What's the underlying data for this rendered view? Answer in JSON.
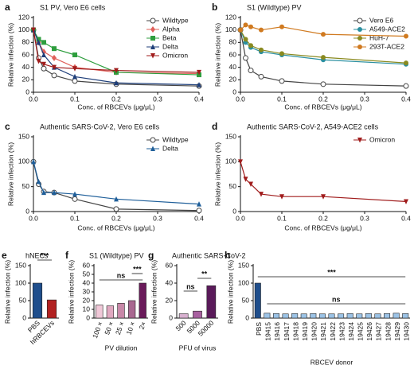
{
  "chart_data": [
    {
      "label": "a",
      "type": "line",
      "title": "S1 PV, Vero E6 cells",
      "xlabel": "Conc. of RBCEVs (μg/μL)",
      "ylabel": "Relative infection (%)",
      "x": [
        0,
        0.0125,
        0.025,
        0.05,
        0.1,
        0.2,
        0.4
      ],
      "xlim": [
        0,
        0.4
      ],
      "xticks": [
        {
          "value": 0,
          "label": "0.0"
        },
        0.1,
        0.2,
        0.3,
        0.4
      ],
      "ylim": [
        0,
        120
      ],
      "yticks": [
        0,
        20,
        40,
        60,
        80,
        100,
        120
      ],
      "series": [
        {
          "name": "Wildtype",
          "color": "#444444",
          "marker": "open-circle",
          "values": [
            100,
            55,
            38,
            27,
            18,
            13,
            10
          ]
        },
        {
          "name": "Alpha",
          "color": "#e0605a",
          "marker": "diamond",
          "values": [
            100,
            80,
            65,
            55,
            40,
            32,
            30
          ]
        },
        {
          "name": "Beta",
          "color": "#2e9e3e",
          "marker": "square",
          "values": [
            100,
            85,
            80,
            70,
            60,
            32,
            28
          ]
        },
        {
          "name": "Delta",
          "color": "#1f3f7a",
          "marker": "triangle",
          "values": [
            100,
            80,
            60,
            40,
            25,
            15,
            12
          ]
        },
        {
          "name": "Omicron",
          "color": "#a01c1c",
          "marker": "down-triangle",
          "values": [
            100,
            50,
            45,
            40,
            38,
            35,
            32
          ]
        }
      ]
    },
    {
      "label": "b",
      "type": "line",
      "title": "S1 (Wildtype) PV",
      "xlabel": "Conc. of RBCEVs (μg/μL)",
      "ylabel": "Relative infection (%)",
      "x": [
        0,
        0.0125,
        0.025,
        0.05,
        0.1,
        0.2,
        0.4
      ],
      "xlim": [
        0,
        0.4
      ],
      "xticks": [
        {
          "value": 0,
          "label": "0.0"
        },
        0.1,
        0.2,
        0.3,
        0.4
      ],
      "ylim": [
        0,
        120
      ],
      "yticks": [
        0,
        20,
        40,
        60,
        80,
        100,
        120
      ],
      "series": [
        {
          "name": "Vero E6",
          "color": "#444444",
          "marker": "open-circle",
          "values": [
            100,
            55,
            35,
            25,
            18,
            13,
            10
          ]
        },
        {
          "name": "A549-ACE2",
          "color": "#2a8fa0",
          "marker": "circle",
          "values": [
            100,
            80,
            72,
            65,
            60,
            52,
            45
          ]
        },
        {
          "name": "HuH-7",
          "color": "#8a8a20",
          "marker": "circle",
          "values": [
            100,
            85,
            75,
            68,
            62,
            56,
            47
          ]
        },
        {
          "name": "293T-ACE2",
          "color": "#d07a20",
          "marker": "circle",
          "values": [
            100,
            108,
            105,
            100,
            105,
            93,
            90
          ]
        }
      ]
    },
    {
      "label": "c",
      "type": "line",
      "title": "Authentic SARS-CoV-2, Vero E6 cells",
      "xlabel": "Conc. of RBCEVs (μg/μL)",
      "ylabel": "Relative infection (%)",
      "x": [
        0,
        0.0125,
        0.025,
        0.05,
        0.1,
        0.2,
        0.4
      ],
      "xlim": [
        0,
        0.4
      ],
      "xticks": [
        {
          "value": 0,
          "label": "0.0"
        },
        0.1,
        0.2,
        0.3,
        0.4
      ],
      "ylim": [
        0,
        150
      ],
      "yticks": [
        0,
        50,
        100,
        150
      ],
      "series": [
        {
          "name": "Wildtype",
          "color": "#444444",
          "marker": "open-circle",
          "values": [
            100,
            55,
            40,
            38,
            25,
            5,
            2
          ]
        },
        {
          "name": "Delta",
          "color": "#1f5f9a",
          "marker": "triangle",
          "values": [
            100,
            60,
            38,
            38,
            35,
            25,
            15
          ]
        }
      ]
    },
    {
      "label": "d",
      "type": "line",
      "title": "Authentic SARS-CoV-2, A549-ACE2 cells",
      "xlabel": "Conc. of RBCEVs (μg/μL)",
      "ylabel": "Relative infection (%)",
      "x": [
        0,
        0.0125,
        0.025,
        0.05,
        0.1,
        0.2,
        0.4
      ],
      "xlim": [
        0,
        0.4
      ],
      "xticks": [
        {
          "value": 0,
          "label": "0.0"
        },
        0.1,
        0.2,
        0.3,
        0.4
      ],
      "ylim": [
        0,
        150
      ],
      "yticks": [
        0,
        50,
        100,
        150
      ],
      "series": [
        {
          "name": "Omicron",
          "color": "#a01c1c",
          "marker": "down-triangle",
          "values": [
            100,
            65,
            55,
            35,
            30,
            30,
            20
          ]
        }
      ]
    },
    {
      "label": "e",
      "type": "bar",
      "title": "hNECs",
      "ylabel": "Relative infection (%)",
      "categories": [
        "PBS",
        "hRBCEVs"
      ],
      "values": [
        100,
        52
      ],
      "colors": [
        "#1f4e8c",
        "#b22222"
      ],
      "ylim": [
        0,
        150
      ],
      "yticks": [
        0,
        50,
        100,
        150
      ],
      "annotations": [
        "***"
      ]
    },
    {
      "label": "f",
      "type": "bar",
      "title": "S1 (Wildtype) PV",
      "xlabel": "PV dilution",
      "ylabel": "Relative infection (%)",
      "categories": [
        "100 ×",
        "50 ×",
        "25 ×",
        "10 ×",
        "2×"
      ],
      "values": [
        15,
        14,
        17,
        20,
        40
      ],
      "colors": [
        "#f0c8d8",
        "#e0a8c0",
        "#c888a8",
        "#a86890",
        "#6a1a5a"
      ],
      "ylim": [
        0,
        60
      ],
      "yticks": [
        0,
        10,
        20,
        30,
        40,
        50,
        60
      ],
      "annotations": [
        "ns",
        "***"
      ]
    },
    {
      "label": "g",
      "type": "bar",
      "title": "Authentic SARS-CoV-2",
      "xlabel": "PFU of virus",
      "ylabel": "Relative infection (%)",
      "categories": [
        "500",
        "5000",
        "50000"
      ],
      "values": [
        5,
        8,
        37
      ],
      "colors": [
        "#d8b0d0",
        "#a860a0",
        "#5a1a5a"
      ],
      "ylim": [
        0,
        60
      ],
      "yticks": [
        0,
        20,
        40,
        60
      ],
      "annotations": [
        "ns",
        "**"
      ]
    },
    {
      "label": "h",
      "type": "bar",
      "xlabel": "RBCEV donor",
      "ylabel": "Relative infection (%)",
      "categories": [
        "PBS",
        "19415",
        "19416",
        "19417",
        "19418",
        "19419",
        "19420",
        "19421",
        "19422",
        "19423",
        "19424",
        "19425",
        "19426",
        "19427",
        "19428",
        "19429",
        "19430"
      ],
      "values": [
        100,
        14,
        13,
        12,
        13,
        12,
        13,
        12,
        12,
        12,
        13,
        12,
        13,
        12,
        13,
        14,
        13
      ],
      "colors": [
        "#1f4e8c",
        "#9cc3e6",
        "#9cc3e6",
        "#9cc3e6",
        "#9cc3e6",
        "#9cc3e6",
        "#9cc3e6",
        "#9cc3e6",
        "#9cc3e6",
        "#9cc3e6",
        "#9cc3e6",
        "#9cc3e6",
        "#9cc3e6",
        "#9cc3e6",
        "#9cc3e6",
        "#9cc3e6",
        "#9cc3e6"
      ],
      "ylim": [
        0,
        150
      ],
      "yticks": [
        0,
        50,
        100,
        150
      ],
      "annotations": [
        "***",
        "ns"
      ]
    }
  ]
}
